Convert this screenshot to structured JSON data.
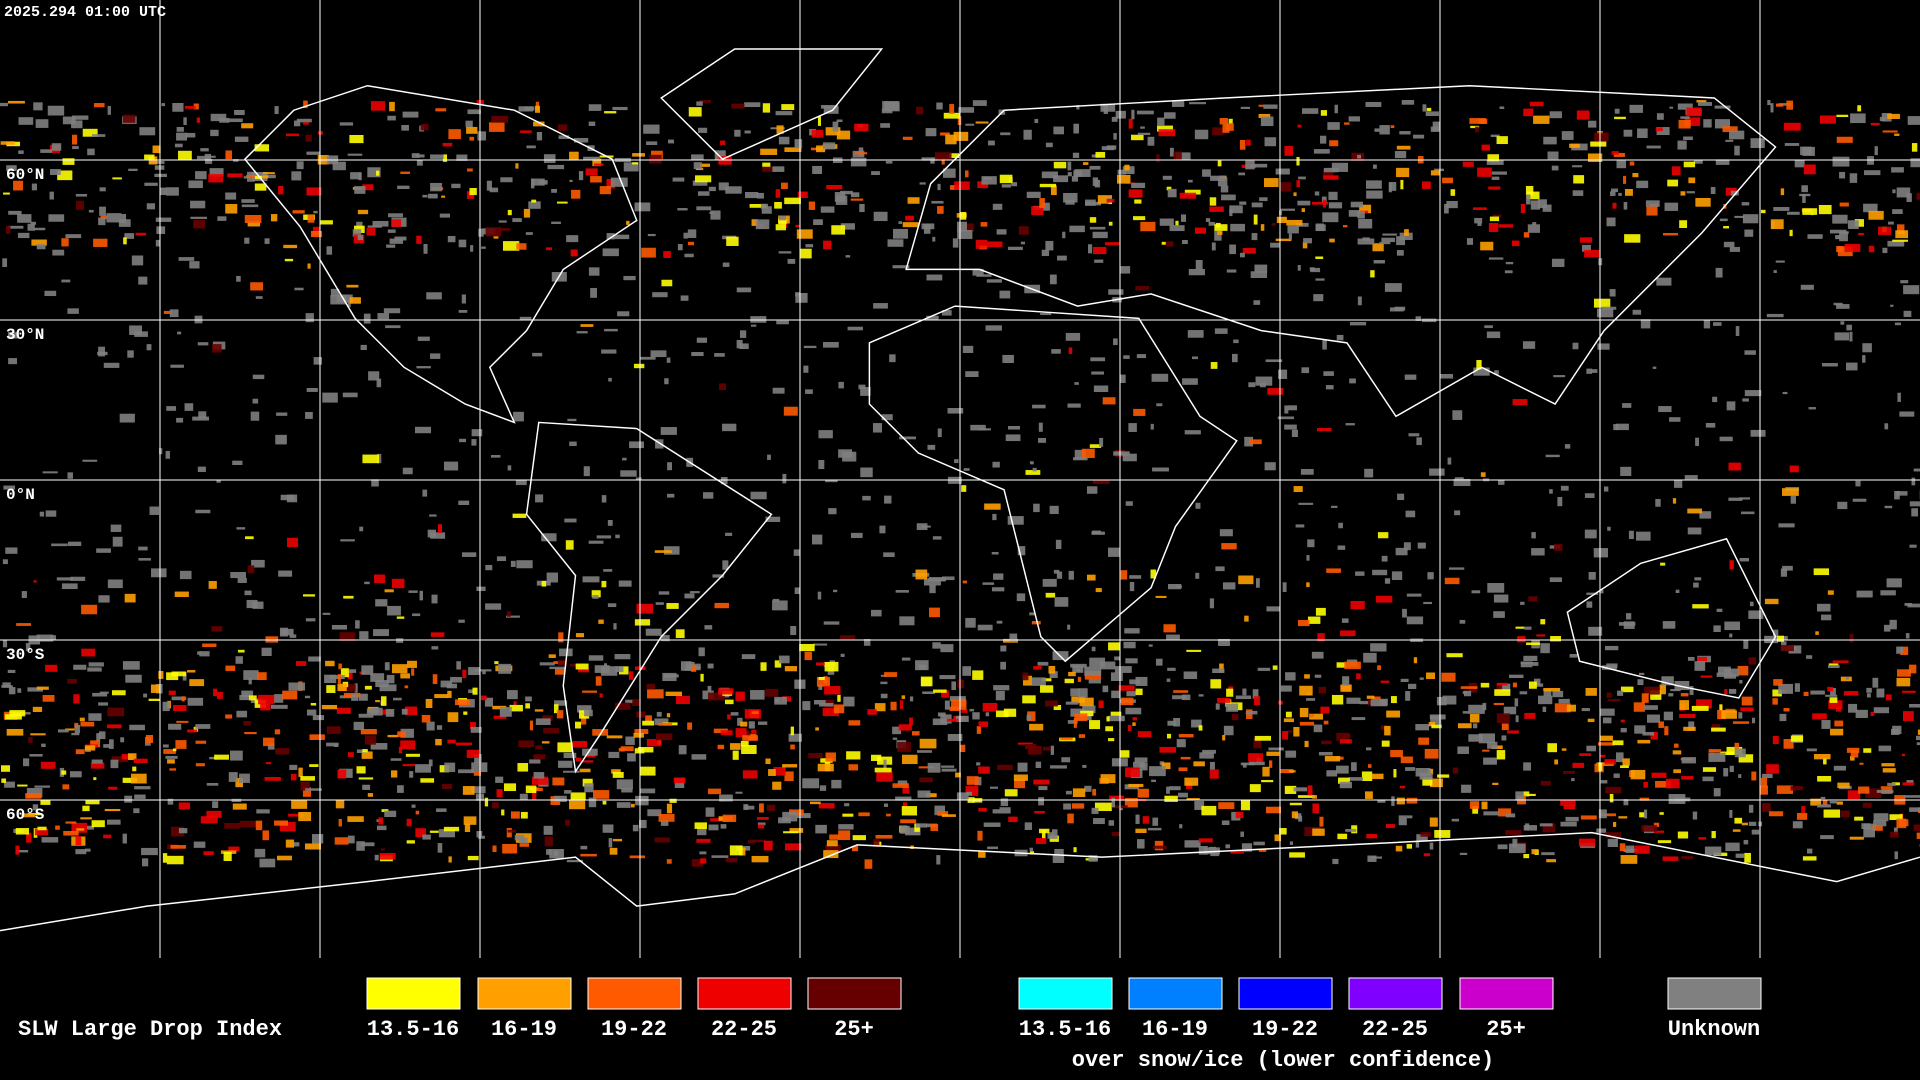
{
  "header": {
    "timestamp": "2025.294 01:00 UTC"
  },
  "map": {
    "latitude_labels": [
      "60°N",
      "30°N",
      "0°N",
      "30°S",
      "60°S"
    ]
  },
  "legend": {
    "title": "SLW Large Drop Index",
    "items": [
      {
        "label": "13.5-16",
        "color": "#ffff00"
      },
      {
        "label": "16-19",
        "color": "#ffa000"
      },
      {
        "label": "19-22",
        "color": "#ff5a00"
      },
      {
        "label": "22-25",
        "color": "#ee0000"
      },
      {
        "label": "25+",
        "color": "#660000"
      }
    ],
    "snow_ice_items": [
      {
        "label": "13.5-16",
        "color": "#00ffff"
      },
      {
        "label": "16-19",
        "color": "#0080ff"
      },
      {
        "label": "19-22",
        "color": "#0000ff"
      },
      {
        "label": "22-25",
        "color": "#8000ff"
      },
      {
        "label": "25+",
        "color": "#cc00cc"
      }
    ],
    "snow_ice_caption": "over snow/ice (lower confidence)",
    "unknown": {
      "label": "Unknown",
      "color": "#808080"
    }
  }
}
